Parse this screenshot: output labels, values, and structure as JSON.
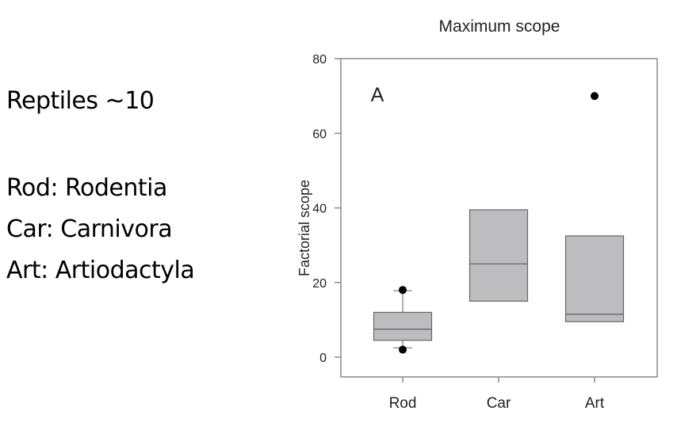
{
  "side_notes": {
    "reptiles": "Reptiles ~10",
    "legend": [
      "Rod: Rodentia",
      "Car: Carnivora",
      "Art: Artiodactyla"
    ]
  },
  "chart_data": {
    "type": "box",
    "title": "Maximum scope",
    "panel_label": "A",
    "xlabel": "",
    "ylabel": "Factorial scope",
    "ylim": [
      -5,
      80
    ],
    "yticks": [
      0,
      20,
      40,
      60,
      80
    ],
    "categories": [
      "Rod",
      "Car",
      "Art"
    ],
    "boxes": [
      {
        "category": "Rod",
        "q1": 4.5,
        "median": 7.5,
        "q3": 12,
        "whisker_low": 2.5,
        "whisker_high": 17.8,
        "outliers": [
          2,
          18
        ]
      },
      {
        "category": "Car",
        "q1": 15,
        "median": 25,
        "q3": 39.5,
        "whisker_low": null,
        "whisker_high": null,
        "outliers": []
      },
      {
        "category": "Art",
        "q1": 9.5,
        "median": 11.5,
        "q3": 32.5,
        "whisker_low": null,
        "whisker_high": null,
        "outliers": [
          70
        ]
      }
    ],
    "colors": {
      "box_fill": "#bdbcbf",
      "box_stroke": "#666666",
      "outlier": "#000000"
    },
    "grid": false
  }
}
